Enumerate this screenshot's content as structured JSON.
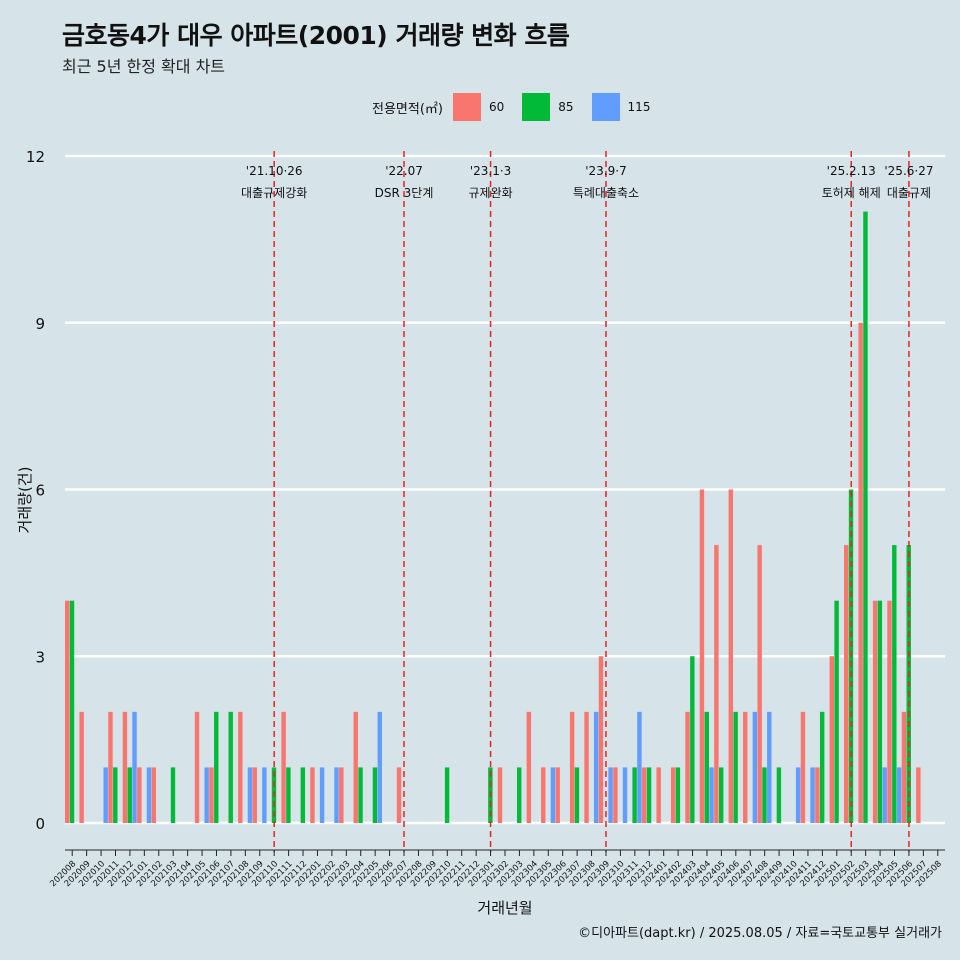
{
  "title": "금호동4가 대우 아파트(2001) 거래량 변화 흐름",
  "subtitle": "최근 5년 한정 확대 차트",
  "legend": {
    "title": "전용면적(㎡)",
    "items": [
      {
        "label": "60",
        "color": "#f8766d"
      },
      {
        "label": "85",
        "color": "#00ba38"
      },
      {
        "label": "115",
        "color": "#619cff"
      }
    ]
  },
  "caption": "©디아파트(dapt.kr) / 2025.08.05 / 자료=국토교통부 실거래가",
  "chart_data": {
    "type": "bar",
    "xlabel": "거래년월",
    "ylabel": "거래량(건)",
    "ylim": [
      0,
      12
    ],
    "yticks": [
      0,
      3,
      6,
      9,
      12
    ],
    "categories": [
      "202008",
      "202009",
      "202010",
      "202011",
      "202012",
      "202101",
      "202102",
      "202103",
      "202104",
      "202105",
      "202106",
      "202107",
      "202108",
      "202109",
      "202110",
      "202111",
      "202112",
      "202201",
      "202202",
      "202203",
      "202204",
      "202205",
      "202206",
      "202207",
      "202208",
      "202209",
      "202210",
      "202211",
      "202212",
      "202301",
      "202302",
      "202303",
      "202304",
      "202305",
      "202306",
      "202307",
      "202308",
      "202309",
      "202310",
      "202311",
      "202312",
      "202401",
      "202402",
      "202403",
      "202404",
      "202405",
      "202406",
      "202407",
      "202408",
      "202409",
      "202410",
      "202411",
      "202412",
      "202501",
      "202502",
      "202503",
      "202504",
      "202505",
      "202506",
      "202507",
      "202508"
    ],
    "series": [
      {
        "name": "60",
        "color": "#f8766d",
        "values": [
          4,
          2,
          0,
          2,
          2,
          1,
          1,
          0,
          0,
          2,
          1,
          0,
          2,
          1,
          0,
          2,
          0,
          1,
          0,
          1,
          2,
          0,
          0,
          1,
          0,
          0,
          0,
          0,
          0,
          0,
          1,
          0,
          2,
          1,
          1,
          2,
          2,
          3,
          1,
          0,
          1,
          1,
          1,
          2,
          6,
          5,
          6,
          2,
          5,
          0,
          0,
          2,
          1,
          3,
          5,
          9,
          4,
          4,
          2,
          1,
          0
        ]
      },
      {
        "name": "85",
        "color": "#00ba38",
        "values": [
          4,
          0,
          0,
          1,
          1,
          0,
          0,
          1,
          0,
          0,
          2,
          2,
          0,
          0,
          1,
          1,
          1,
          0,
          0,
          0,
          1,
          1,
          0,
          0,
          0,
          0,
          1,
          0,
          0,
          1,
          0,
          1,
          0,
          0,
          0,
          1,
          0,
          0,
          0,
          1,
          1,
          0,
          1,
          3,
          2,
          1,
          2,
          0,
          1,
          1,
          0,
          0,
          2,
          4,
          6,
          11,
          4,
          5,
          5,
          0,
          0
        ]
      },
      {
        "name": "115",
        "color": "#619cff",
        "values": [
          0,
          0,
          1,
          0,
          2,
          1,
          0,
          0,
          0,
          1,
          0,
          0,
          1,
          1,
          0,
          0,
          0,
          1,
          1,
          0,
          0,
          2,
          0,
          0,
          0,
          0,
          0,
          0,
          0,
          0,
          0,
          0,
          0,
          1,
          0,
          0,
          2,
          1,
          1,
          2,
          0,
          0,
          0,
          0,
          1,
          0,
          0,
          2,
          2,
          0,
          1,
          1,
          0,
          0,
          0,
          0,
          1,
          1,
          0,
          0,
          0
        ]
      }
    ],
    "annotations": [
      {
        "x": "202110",
        "date": "'21.10·26",
        "label": "대출규제강화"
      },
      {
        "x": "202207",
        "date": "'22.07",
        "label": "DSR 3단계"
      },
      {
        "x": "202301",
        "date": "'23.1·3",
        "label": "규제완화"
      },
      {
        "x": "202309",
        "date": "'23.9·7",
        "label": "특례대출축소"
      },
      {
        "x": "202502",
        "date": "'25.2.13",
        "label": "토허제 해제"
      },
      {
        "x": "202506",
        "date": "'25.6·27",
        "label": "대출규제"
      }
    ],
    "grid": true,
    "legend_position": "top"
  }
}
